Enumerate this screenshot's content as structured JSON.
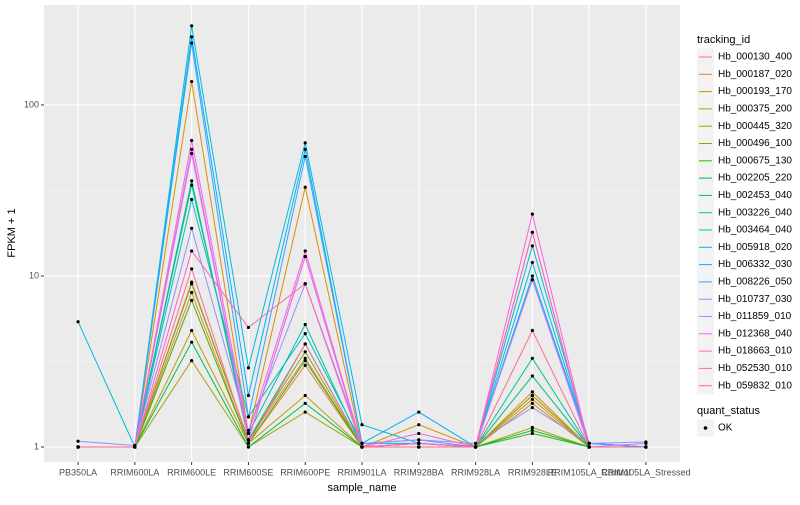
{
  "chart_data": {
    "type": "line",
    "x_label": "sample_name",
    "y_label": "FPKM + 1",
    "log_y": true,
    "grid": true,
    "legend_position": "right",
    "legend_title": "tracking_id",
    "shape_legend": {
      "title": "quant_status",
      "labels": [
        "OK"
      ]
    },
    "point_color": "#000000",
    "categories": [
      "PB350LA",
      "RRIM600LA",
      "RRIM600LE",
      "RRIM600SE",
      "RRIM600PE",
      "RRIM901LA",
      "RRIM928BA",
      "RRIM928LA",
      "RRIM928LE",
      "RRIM105LA_Control",
      "RRIM105LA_Stressed"
    ],
    "ylim": [
      0.817,
      384
    ],
    "yticks": [
      1,
      10,
      100
    ],
    "series": [
      {
        "name": "Hb_000130_400",
        "color": "#F8766D",
        "values": [
          1,
          1,
          9.2,
          1.1,
          3.3,
          1,
          1,
          1,
          2.0,
          1,
          1
        ]
      },
      {
        "name": "Hb_000187_020",
        "color": "#EA8331",
        "values": [
          1,
          1,
          8,
          1.05,
          3.0,
          1,
          1,
          1,
          1.9,
          1,
          1
        ]
      },
      {
        "name": "Hb_000193_170",
        "color": "#D89000",
        "values": [
          1,
          1,
          137,
          1.2,
          33,
          1,
          1.35,
          1,
          2.1,
          1,
          1
        ]
      },
      {
        "name": "Hb_000375_200",
        "color": "#C09B00",
        "values": [
          1,
          1,
          4.8,
          1.05,
          2.0,
          1,
          1.05,
          1,
          1.8,
          1,
          1
        ]
      },
      {
        "name": "Hb_000445_320",
        "color": "#A3A500",
        "values": [
          1,
          1,
          3.2,
          1,
          1.6,
          1,
          1,
          1,
          1.3,
          1,
          1
        ]
      },
      {
        "name": "Hb_000496_100",
        "color": "#7CAE00",
        "values": [
          1,
          1,
          9,
          1.1,
          3.6,
          1,
          1,
          1,
          2.0,
          1,
          1
        ]
      },
      {
        "name": "Hb_000675_130",
        "color": "#39B600",
        "values": [
          1,
          1,
          7.2,
          1.05,
          3.2,
          1,
          1,
          1,
          1.2,
          1,
          1
        ]
      },
      {
        "name": "Hb_002205_220",
        "color": "#00BB4E",
        "values": [
          1,
          1,
          4.1,
          1,
          1.8,
          1,
          1,
          1,
          1.25,
          1,
          1
        ]
      },
      {
        "name": "Hb_002453_040",
        "color": "#00BF7D",
        "values": [
          1,
          1,
          36,
          1.1,
          4.0,
          1,
          1.05,
          1,
          2.6,
          1,
          1
        ]
      },
      {
        "name": "Hb_003226_040",
        "color": "#00C1A3",
        "values": [
          1,
          1,
          34,
          1.2,
          5.2,
          1,
          1.05,
          1,
          3.3,
          1,
          1
        ]
      },
      {
        "name": "Hb_003464_040",
        "color": "#00BFC4",
        "values": [
          1,
          1,
          28,
          1.5,
          4.6,
          1.05,
          1.05,
          1,
          15,
          1.05,
          1
        ]
      },
      {
        "name": "Hb_005918_020",
        "color": "#00BAE0",
        "values": [
          5.4,
          1,
          290,
          2.9,
          60,
          1.35,
          1.05,
          1,
          12,
          1.05,
          1
        ]
      },
      {
        "name": "Hb_006332_030",
        "color": "#00B0F6",
        "values": [
          1,
          1,
          250,
          2.0,
          55,
          1.05,
          1.6,
          1,
          10,
          1.05,
          1
        ]
      },
      {
        "name": "Hb_008226_050",
        "color": "#35A2FF",
        "values": [
          1,
          1,
          230,
          1.5,
          50,
          1.05,
          1.1,
          1,
          9.5,
          1.05,
          1
        ]
      },
      {
        "name": "Hb_010737_030",
        "color": "#9590FF",
        "values": [
          1.08,
          1.02,
          19,
          1.25,
          9,
          1.05,
          1.1,
          1.05,
          1.7,
          1.05,
          1.07
        ]
      },
      {
        "name": "Hb_011859_010",
        "color": "#C77CFF",
        "values": [
          1,
          1,
          55,
          1.1,
          13,
          1,
          1.05,
          1,
          9.5,
          1,
          1.05
        ]
      },
      {
        "name": "Hb_012368_040",
        "color": "#E76BF3",
        "values": [
          1,
          1,
          52,
          1.1,
          13,
          1,
          1.05,
          1,
          18,
          1,
          1
        ]
      },
      {
        "name": "Hb_018663_010",
        "color": "#FA62DB",
        "values": [
          1,
          1,
          62,
          1.2,
          14,
          1,
          1.2,
          1,
          23,
          1,
          1
        ]
      },
      {
        "name": "Hb_052530_010",
        "color": "#FF62BC",
        "values": [
          1,
          1,
          14,
          5.0,
          9,
          1,
          1.05,
          1,
          18,
          1,
          1
        ]
      },
      {
        "name": "Hb_059832_010",
        "color": "#FF6C91",
        "values": [
          1,
          1,
          11,
          1.05,
          4.0,
          1,
          1,
          1,
          4.8,
          1,
          1
        ]
      }
    ]
  }
}
